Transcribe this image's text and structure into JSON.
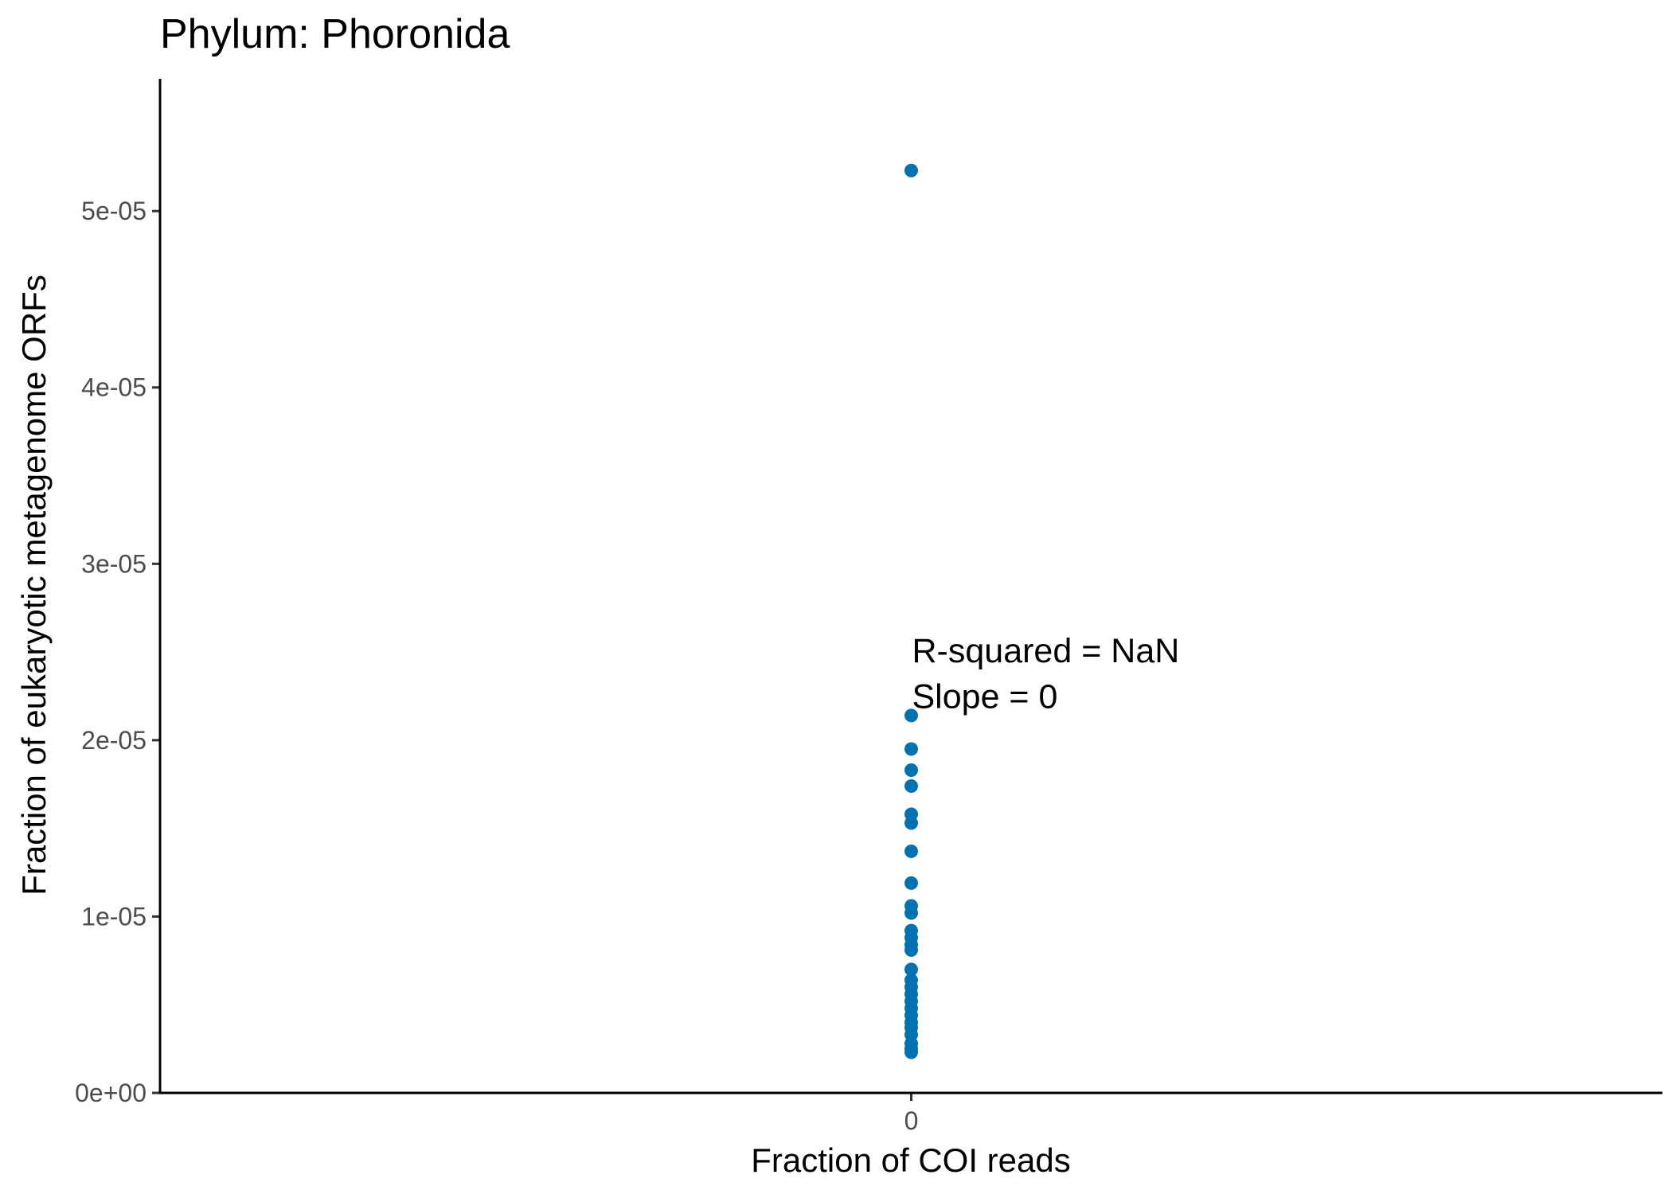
{
  "chart_data": {
    "type": "scatter",
    "title": "Phylum:  Phoronida",
    "xlabel": "Fraction of COI reads",
    "ylabel": "Fraction of eukaryotic metagenome ORFs",
    "x_ticks": [
      {
        "value": 0,
        "label": "0"
      }
    ],
    "y_ticks": [
      {
        "value": 0,
        "label": "0e+00"
      },
      {
        "value": 1e-05,
        "label": "1e-05"
      },
      {
        "value": 2e-05,
        "label": "2e-05"
      },
      {
        "value": 3e-05,
        "label": "3e-05"
      },
      {
        "value": 4e-05,
        "label": "4e-05"
      },
      {
        "value": 5e-05,
        "label": "5e-05"
      }
    ],
    "xlim": [
      -0.05,
      0.05
    ],
    "ylim": [
      0,
      5.75e-05
    ],
    "point_color": "#0072B2",
    "series": [
      {
        "x": [
          0,
          0,
          0,
          0,
          0,
          0,
          0,
          0,
          0,
          0,
          0,
          0,
          0,
          0,
          0,
          0,
          0,
          0,
          0,
          0,
          0,
          0,
          0,
          0,
          0,
          0,
          0,
          0
        ],
        "y": [
          5.23e-05,
          2.14e-05,
          1.95e-05,
          1.83e-05,
          1.74e-05,
          1.58e-05,
          1.53e-05,
          1.37e-05,
          1.19e-05,
          1.06e-05,
          1.02e-05,
          9.2e-06,
          8.8e-06,
          8.4e-06,
          8.1e-06,
          7e-06,
          6.4e-06,
          6e-06,
          5.6e-06,
          5.2e-06,
          4.8e-06,
          4.4e-06,
          4e-06,
          3.7e-06,
          3.3e-06,
          2.8e-06,
          2.5e-06,
          2.3e-06
        ]
      }
    ],
    "annotations": [
      {
        "text": "R-squared =  NaN",
        "x": 0,
        "y": 2.51e-05
      },
      {
        "text": "Slope =  0",
        "x": 0,
        "y": 2.25e-05
      }
    ],
    "grid": false,
    "legend": "none"
  }
}
